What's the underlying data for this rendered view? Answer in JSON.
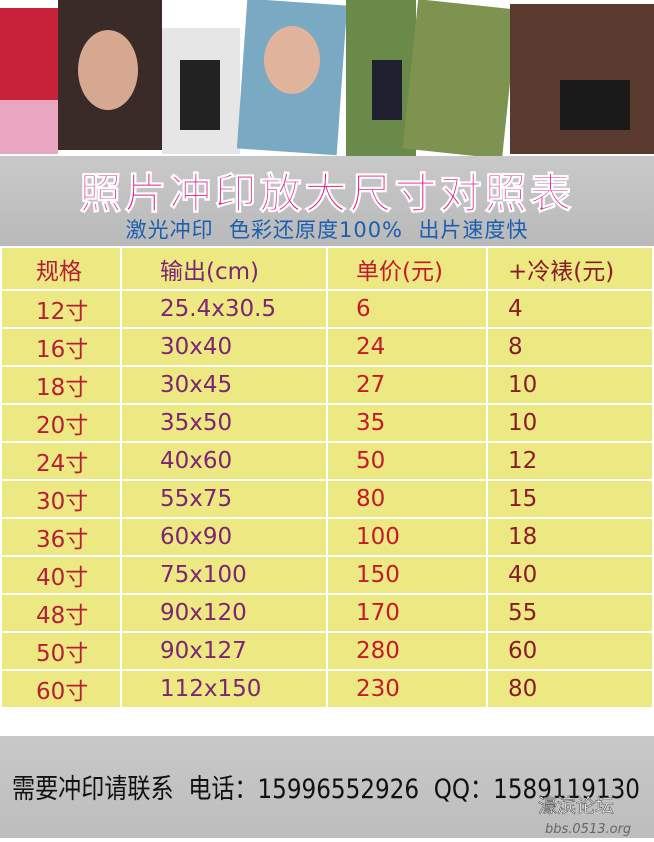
{
  "header": {
    "title": "照片冲印放大尺寸对照表",
    "subtitle": "激光冲印  色彩还原度100%  出片速度快"
  },
  "table": {
    "columns": [
      "规格",
      "输出(cm)",
      "单价(元)",
      "+冷裱(元)"
    ],
    "rows": [
      [
        "12寸",
        "25.4x30.5",
        "6",
        "4"
      ],
      [
        "16寸",
        "30x40",
        "24",
        "8"
      ],
      [
        "18寸",
        "30x45",
        "27",
        "10"
      ],
      [
        "20寸",
        "35x50",
        "35",
        "10"
      ],
      [
        "24寸",
        "40x60",
        "50",
        "12"
      ],
      [
        "30寸",
        "55x75",
        "80",
        "15"
      ],
      [
        "36寸",
        "60x90",
        "100",
        "18"
      ],
      [
        "40寸",
        "75x100",
        "150",
        "40"
      ],
      [
        "48寸",
        "90x120",
        "170",
        "55"
      ],
      [
        "50寸",
        "90x127",
        "280",
        "60"
      ],
      [
        "60寸",
        "112x150",
        "230",
        "80"
      ]
    ]
  },
  "footer": {
    "contact": "需要冲印请联系  电话：15996552926  QQ：1589119130",
    "watermark": "濠滨论坛",
    "watermark_url": "bbs.0513.org"
  }
}
